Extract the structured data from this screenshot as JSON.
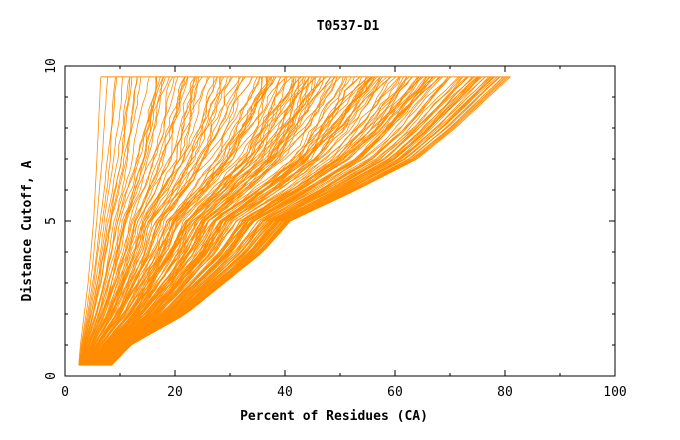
{
  "chart_data": {
    "type": "line",
    "title": "T0537-D1",
    "xlabel": "Percent of Residues (CA)",
    "ylabel": "Distance Cutoff, A",
    "xlim": [
      0,
      100
    ],
    "ylim": [
      0,
      10
    ],
    "x_ticks": [
      0,
      20,
      40,
      60,
      80,
      100
    ],
    "y_ticks": [
      0,
      5,
      10
    ],
    "line_color": "#ff8c00",
    "grid": false,
    "legend": "none",
    "y_start": 0.35,
    "y_end": 9.65,
    "bundle_left_edge": {
      "points_x_at_y": [
        [
          0.35,
          2.5
        ],
        [
          1.0,
          2.8
        ],
        [
          3.0,
          4.2
        ],
        [
          5.0,
          5.2
        ],
        [
          7.0,
          5.8
        ],
        [
          9.65,
          6.5
        ]
      ]
    },
    "bundle_right_edge": {
      "points_x_at_y": [
        [
          0.35,
          8.5
        ],
        [
          1.0,
          12.0
        ],
        [
          2.0,
          22.0
        ],
        [
          3.0,
          29.0
        ],
        [
          4.0,
          36.0
        ],
        [
          5.0,
          41.0
        ],
        [
          6.0,
          53.0
        ],
        [
          7.0,
          64.0
        ],
        [
          8.0,
          71.0
        ],
        [
          9.0,
          77.0
        ],
        [
          9.65,
          81.0
        ]
      ]
    },
    "series_count": 200,
    "series": []
  }
}
